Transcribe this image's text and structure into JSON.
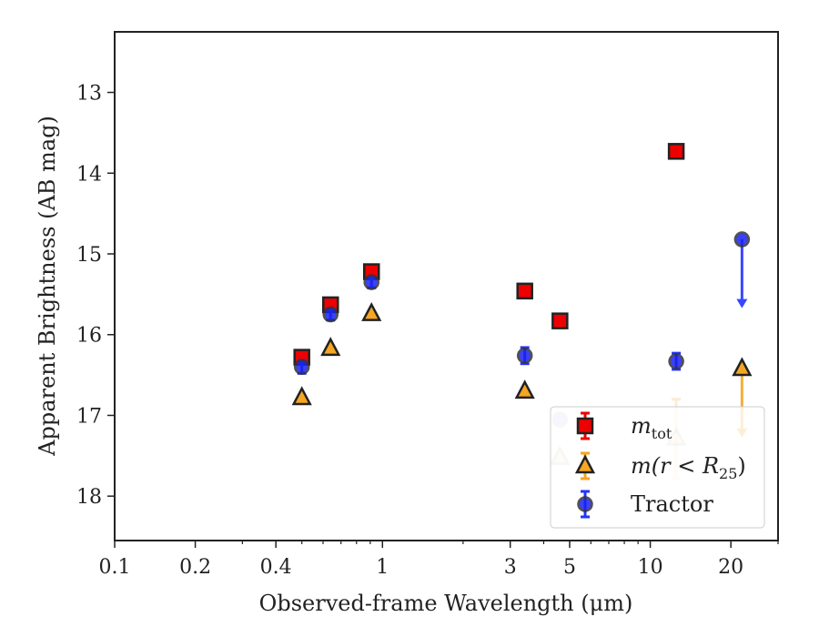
{
  "chart_data": {
    "type": "scatter",
    "xlabel": "Observed-frame Wavelength (μm)",
    "ylabel": "Apparent Brightness (AB mag)",
    "xscale": "log",
    "xlim": [
      0.1,
      30
    ],
    "ylim": [
      18.55,
      12.25
    ],
    "y_inverted": true,
    "grid": false,
    "x_ticks": [
      {
        "value": 0.1,
        "label": "0.1"
      },
      {
        "value": 0.2,
        "label": "0.2"
      },
      {
        "value": 0.4,
        "label": "0.4"
      },
      {
        "value": 1,
        "label": "1"
      },
      {
        "value": 3,
        "label": "3"
      },
      {
        "value": 5,
        "label": "5"
      },
      {
        "value": 10,
        "label": "10"
      },
      {
        "value": 20,
        "label": "20"
      }
    ],
    "x_minor_ticks": [
      0.3,
      0.5,
      0.6,
      0.7,
      0.8,
      0.9,
      2,
      4,
      6,
      7,
      8,
      9,
      30
    ],
    "y_ticks": [
      {
        "value": 13,
        "label": "13"
      },
      {
        "value": 14,
        "label": "14"
      },
      {
        "value": 15,
        "label": "15"
      },
      {
        "value": 16,
        "label": "16"
      },
      {
        "value": 17,
        "label": "17"
      },
      {
        "value": 18,
        "label": "18"
      }
    ],
    "legend_position": "lower-right",
    "series": [
      {
        "name": "m_tot",
        "label_main": "m",
        "label_sub": "tot",
        "marker": "square",
        "face_color": "#ee0000",
        "edge_color": "#222222",
        "error_color": "#ee0000",
        "points": [
          {
            "x": 0.5,
            "y": 16.28
          },
          {
            "x": 0.64,
            "y": 15.63
          },
          {
            "x": 0.91,
            "y": 15.22
          },
          {
            "x": 3.4,
            "y": 15.46
          },
          {
            "x": 4.6,
            "y": 15.83
          },
          {
            "x": 12.5,
            "y": 13.73
          }
        ]
      },
      {
        "name": "m(r < R25)",
        "label_pre": "m(r < R",
        "label_sub": "25",
        "label_post": ")",
        "marker": "triangle",
        "face_color": "#f5a623",
        "edge_color": "#222222",
        "error_color": "#f5a623",
        "points": [
          {
            "x": 0.5,
            "y": 16.78
          },
          {
            "x": 0.64,
            "y": 16.17
          },
          {
            "x": 0.91,
            "y": 15.74
          },
          {
            "x": 3.4,
            "y": 16.7
          },
          {
            "x": 22,
            "y": 16.42,
            "upper_limit_to": 17.25
          }
        ],
        "faded_points": [
          {
            "x": 4.6,
            "y": 17.52
          },
          {
            "x": 12.5,
            "y": 17.28,
            "err_low": 16.8,
            "err_high": 17.78
          }
        ]
      },
      {
        "name": "Tractor",
        "marker": "circle",
        "face_color": "#1a22ee",
        "edge_color": "#333333",
        "error_color": "#2233ff",
        "points": [
          {
            "x": 0.5,
            "y": 16.4,
            "err": 0.08
          },
          {
            "x": 0.64,
            "y": 15.75,
            "err": 0.07
          },
          {
            "x": 0.91,
            "y": 15.35,
            "err": 0.07
          },
          {
            "x": 3.4,
            "y": 16.26,
            "err": 0.1
          },
          {
            "x": 12.5,
            "y": 16.33,
            "err": 0.1
          },
          {
            "x": 22,
            "y": 14.82,
            "upper_limit_to": 15.65
          }
        ],
        "faded_points": [
          {
            "x": 4.6,
            "y": 17.05
          }
        ]
      }
    ]
  }
}
